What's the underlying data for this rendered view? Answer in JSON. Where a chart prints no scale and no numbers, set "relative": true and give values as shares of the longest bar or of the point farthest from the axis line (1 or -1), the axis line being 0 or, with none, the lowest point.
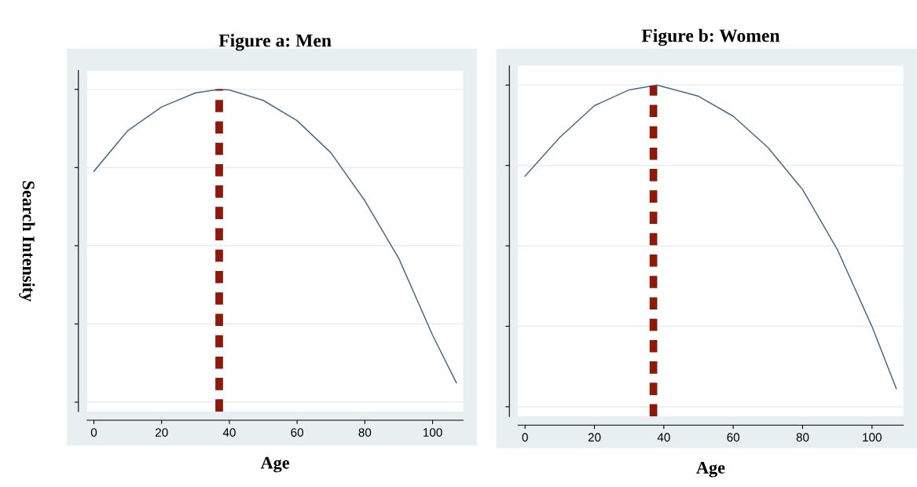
{
  "chart_data": [
    {
      "type": "line",
      "title": "Figure a: Men",
      "xlabel": "Age",
      "ylabel": "Search Intensity",
      "relative": true,
      "x": [
        0,
        10,
        20,
        30,
        37,
        40,
        50,
        60,
        70,
        80,
        90,
        100,
        107
      ],
      "series": [
        {
          "color": "#4a6a8c",
          "values": [
            0.738,
            0.868,
            0.944,
            0.989,
            1.0,
            0.998,
            0.965,
            0.9,
            0.797,
            0.644,
            0.46,
            0.214,
            0.062
          ]
        }
      ],
      "xlim": [
        -2,
        109
      ],
      "xticks": [
        0,
        20,
        40,
        60,
        80,
        100
      ],
      "grid": "y",
      "marker": "none",
      "line_style": "solid",
      "ref_lines": [
        {
          "axis": "x",
          "value": 37,
          "color": "#8b1a0a",
          "line_style": "dashed"
        }
      ]
    },
    {
      "type": "line",
      "title": "Figure b: Women",
      "xlabel": "Age",
      "relative": true,
      "x": [
        0,
        10,
        20,
        30,
        38,
        50,
        60,
        70,
        80,
        90,
        100,
        107
      ],
      "series": [
        {
          "color": "#4a6a8c",
          "values": [
            0.717,
            0.837,
            0.936,
            0.985,
            1.0,
            0.965,
            0.903,
            0.806,
            0.675,
            0.489,
            0.249,
            0.056
          ]
        }
      ],
      "xlim": [
        -2,
        109
      ],
      "xticks": [
        0,
        20,
        40,
        60,
        80,
        100
      ],
      "grid": "y",
      "marker": "none",
      "line_style": "solid",
      "ref_lines": [
        {
          "axis": "x",
          "value": 37,
          "color": "#8b1a0a",
          "line_style": "dashed"
        }
      ]
    }
  ]
}
